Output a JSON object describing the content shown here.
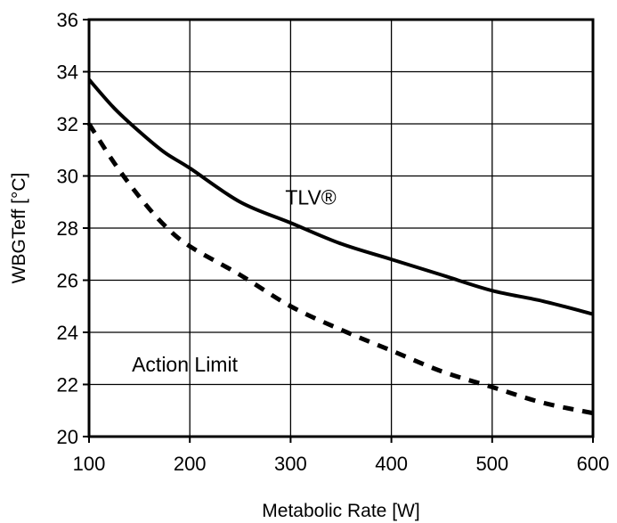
{
  "chart_data": {
    "type": "line",
    "xlabel": "Metabolic Rate [W]",
    "ylabel": "WBGTeff [°C]",
    "xlim": [
      100,
      600
    ],
    "ylim": [
      20,
      36
    ],
    "xticks": [
      100,
      200,
      300,
      400,
      500,
      600
    ],
    "yticks": [
      20,
      22,
      24,
      26,
      28,
      30,
      32,
      34,
      36
    ],
    "xtick_labels": [
      "100",
      "200",
      "300",
      "400",
      "500",
      "600"
    ],
    "ytick_labels": [
      "20",
      "22",
      "24",
      "26",
      "28",
      "30",
      "32",
      "34",
      "36"
    ],
    "grid": true,
    "series": [
      {
        "name": "TLV®",
        "style": "solid",
        "color": "#000000",
        "x": [
          100,
          125,
          150,
          175,
          200,
          250,
          300,
          350,
          400,
          450,
          500,
          550,
          600
        ],
        "y": [
          33.7,
          32.6,
          31.7,
          30.9,
          30.3,
          29.0,
          28.2,
          27.4,
          26.8,
          26.2,
          25.6,
          25.2,
          24.7
        ]
      },
      {
        "name": "Action Limit",
        "style": "dashed",
        "color": "#000000",
        "x": [
          100,
          125,
          150,
          175,
          200,
          250,
          300,
          350,
          400,
          450,
          500,
          550,
          600
        ],
        "y": [
          32.0,
          30.5,
          29.2,
          28.1,
          27.3,
          26.2,
          25.0,
          24.1,
          23.3,
          22.5,
          21.9,
          21.3,
          20.9
        ]
      }
    ],
    "annotations": [
      {
        "text": "TLV®",
        "x": 320,
        "y": 28.9
      },
      {
        "text": "Action Limit",
        "x": 195,
        "y": 22.5
      }
    ]
  }
}
